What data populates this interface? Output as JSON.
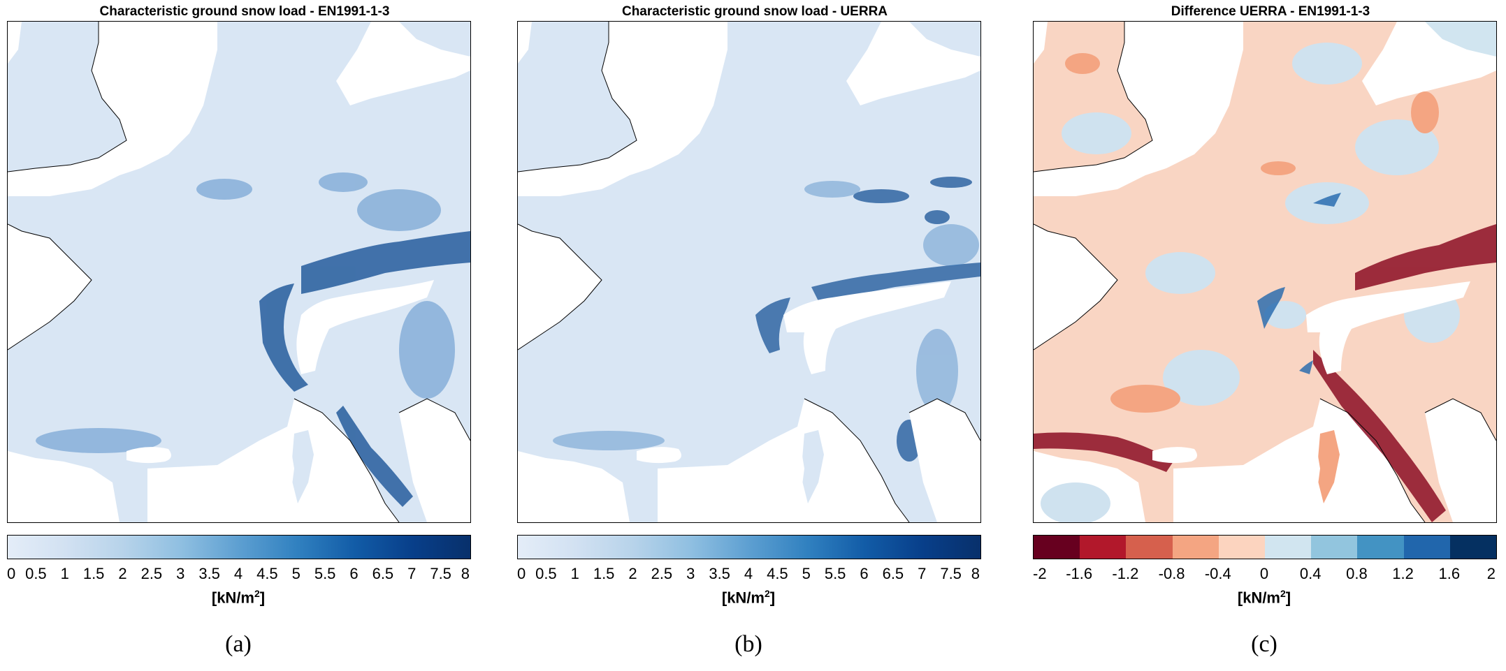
{
  "panels": [
    {
      "title": "Characteristic ground snow load - EN1991-1-3",
      "label": "(a)",
      "colorbar": {
        "type": "continuous",
        "ticks": [
          "0",
          "0.5",
          "1",
          "1.5",
          "2",
          "2.5",
          "3",
          "3.5",
          "4",
          "4.5",
          "5",
          "5.5",
          "6",
          "6.5",
          "7",
          "7.5",
          "8"
        ],
        "colors": [
          "#e4edf8",
          "#d2e1f2",
          "#b7d3ea",
          "#8fbfe1",
          "#5d9fd1",
          "#3181c0",
          "#125ca7",
          "#083f8a",
          "#08306b"
        ],
        "unit_base": "[kN/m",
        "unit_sup": "2",
        "unit_end": "]"
      }
    },
    {
      "title": "Characteristic ground snow load - UERRA",
      "label": "(b)",
      "colorbar": {
        "type": "continuous",
        "ticks": [
          "0",
          "0.5",
          "1",
          "1.5",
          "2",
          "2.5",
          "3",
          "3.5",
          "4",
          "4.5",
          "5",
          "5.5",
          "6",
          "6.5",
          "7",
          "7.5",
          "8"
        ],
        "colors": [
          "#e4edf8",
          "#d2e1f2",
          "#b7d3ea",
          "#8fbfe1",
          "#5d9fd1",
          "#3181c0",
          "#125ca7",
          "#083f8a",
          "#08306b"
        ],
        "unit_base": "[kN/m",
        "unit_sup": "2",
        "unit_end": "]"
      }
    },
    {
      "title": "Difference UERRA - EN1991-1-3",
      "label": "(c)",
      "colorbar": {
        "type": "discrete",
        "ticks": [
          "-2",
          "-1.6",
          "-1.2",
          "-0.8",
          "-0.4",
          "0",
          "0.4",
          "0.8",
          "1.2",
          "1.6",
          "2"
        ],
        "colors": [
          "#67001f",
          "#b2182b",
          "#d6604d",
          "#f4a582",
          "#fcd4bf",
          "#d1e5f0",
          "#92c5de",
          "#4393c3",
          "#2166ac",
          "#053061"
        ],
        "unit_base": "[kN/m",
        "unit_sup": "2",
        "unit_end": "]"
      }
    }
  ],
  "map_colors": {
    "land_blue": "#d9e6f4",
    "land_pink": "#f9d5c3",
    "land_light_blue": "#cfe2ef",
    "water": "#ffffff",
    "dark_blue": "#0d4a91",
    "dark_red": "#8c0e24",
    "mid_red": "#c43a3a"
  }
}
